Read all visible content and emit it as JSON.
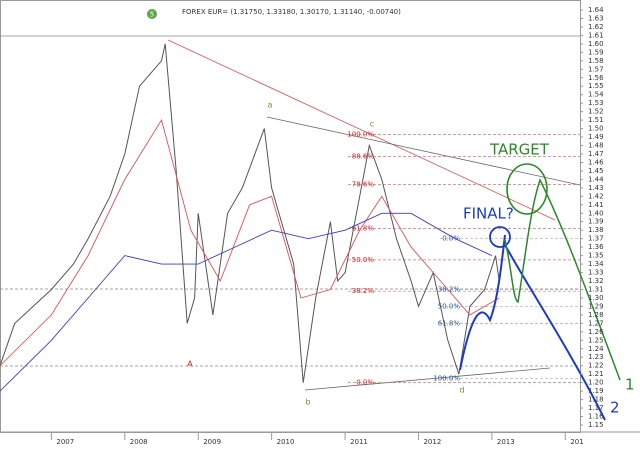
{
  "chart_data": {
    "type": "line",
    "title": "FOREX EUR= (1.31750, 1.33180, 1.30170, 1.31140, -0.00740)",
    "badge": "5",
    "xlim": [
      2006.3,
      2014.2
    ],
    "xticks": [
      2007,
      2008,
      2009,
      2010,
      2011,
      2012,
      2013,
      {
        "value": 2014,
        "label": "201"
      }
    ],
    "ylim": [
      1.15,
      1.64
    ],
    "yticks": [
      {
        "value": 1.15,
        "label": "1.15"
      },
      {
        "value": 1.16,
        "label": "1.16"
      },
      {
        "value": 1.17,
        "label": "1.17"
      },
      {
        "value": 1.18,
        "label": "1.18"
      },
      {
        "value": 1.19,
        "label": "1.19"
      },
      {
        "value": 1.2,
        "label": "1.20"
      },
      {
        "value": 1.21,
        "label": "1.21"
      },
      {
        "value": 1.22,
        "label": "1.22"
      },
      {
        "value": 1.23,
        "label": "1.23"
      },
      {
        "value": 1.24,
        "label": "1.24"
      },
      {
        "value": 1.25,
        "label": "1.25"
      },
      {
        "value": 1.26,
        "label": "1.26"
      },
      {
        "value": 1.27,
        "label": "1.27"
      },
      {
        "value": 1.28,
        "label": "1.28"
      },
      {
        "value": 1.29,
        "label": "1.29"
      },
      {
        "value": 1.3,
        "label": "1.30"
      },
      {
        "value": 1.31,
        "label": "1.31"
      },
      {
        "value": 1.32,
        "label": "1.32"
      },
      {
        "value": 1.33,
        "label": "1.33"
      },
      {
        "value": 1.34,
        "label": "1.34"
      },
      {
        "value": 1.35,
        "label": "1.35"
      },
      {
        "value": 1.36,
        "label": "1.36"
      },
      {
        "value": 1.37,
        "label": "1.37"
      },
      {
        "value": 1.38,
        "label": "1.38"
      },
      {
        "value": 1.39,
        "label": "1.39"
      },
      {
        "value": 1.4,
        "label": "1.40"
      },
      {
        "value": 1.41,
        "label": "1.41"
      },
      {
        "value": 1.42,
        "label": "1.42"
      },
      {
        "value": 1.43,
        "label": "1.43"
      },
      {
        "value": 1.44,
        "label": "1.44"
      },
      {
        "value": 1.45,
        "label": "1.45"
      },
      {
        "value": 1.46,
        "label": "1.46"
      },
      {
        "value": 1.47,
        "label": "1.47"
      },
      {
        "value": 1.48,
        "label": "1.48"
      },
      {
        "value": 1.49,
        "label": "1.49"
      },
      {
        "value": 1.5,
        "label": "1.50"
      },
      {
        "value": 1.51,
        "label": "1.51"
      },
      {
        "value": 1.52,
        "label": "1.52"
      },
      {
        "value": 1.53,
        "label": "1.53"
      },
      {
        "value": 1.54,
        "label": "1.54"
      },
      {
        "value": 1.55,
        "label": "1.55"
      },
      {
        "value": 1.56,
        "label": "1.56"
      },
      {
        "value": 1.57,
        "label": "1.57"
      },
      {
        "value": 1.58,
        "label": "1.58"
      },
      {
        "value": 1.59,
        "label": "1.59"
      },
      {
        "value": 1.6,
        "label": "1.60"
      },
      {
        "value": 1.61,
        "label": "1.61"
      },
      {
        "value": 1.62,
        "label": "1.62"
      },
      {
        "value": 1.63,
        "label": "1.63"
      },
      {
        "value": 1.64,
        "label": "1.64"
      }
    ],
    "series": [
      {
        "color": "#555555",
        "x": [
          2006.3,
          2006.5,
          2007.0,
          2007.3,
          2007.5,
          2007.8,
          2008.0,
          2008.2,
          2008.5,
          2008.55,
          2008.7,
          2008.85,
          2008.95,
          2009.0,
          2009.2,
          2009.4,
          2009.6,
          2009.9,
          2010.0,
          2010.3,
          2010.43,
          2010.6,
          2010.8,
          2010.9,
          2011.0,
          2011.2,
          2011.33,
          2011.5,
          2011.7,
          2011.9,
          2012.0,
          2012.2,
          2012.4,
          2012.55,
          2012.7,
          2012.9,
          2013.05,
          2013.1
        ],
        "values": [
          1.22,
          1.27,
          1.31,
          1.34,
          1.37,
          1.42,
          1.47,
          1.55,
          1.58,
          1.6,
          1.45,
          1.27,
          1.3,
          1.4,
          1.28,
          1.4,
          1.43,
          1.5,
          1.43,
          1.34,
          1.2,
          1.3,
          1.39,
          1.32,
          1.33,
          1.42,
          1.48,
          1.44,
          1.37,
          1.32,
          1.29,
          1.33,
          1.25,
          1.21,
          1.29,
          1.31,
          1.35,
          1.32
        ]
      },
      {
        "color": "#e05050",
        "x": [
          2006.3,
          2007.0,
          2007.5,
          2008.0,
          2008.5,
          2008.9,
          2009.3,
          2009.7,
          2010.0,
          2010.4,
          2010.8,
          2011.2,
          2011.5,
          2011.9,
          2012.3,
          2012.7,
          2013.1
        ],
        "values": [
          1.22,
          1.28,
          1.35,
          1.44,
          1.51,
          1.38,
          1.32,
          1.41,
          1.42,
          1.3,
          1.31,
          1.38,
          1.42,
          1.36,
          1.32,
          1.28,
          1.3
        ]
      },
      {
        "color": "#3a3adc",
        "x": [
          2006.3,
          2007.0,
          2007.5,
          2008.0,
          2008.5,
          2009.0,
          2009.5,
          2010.0,
          2010.5,
          2011.0,
          2011.5,
          2011.9,
          2012.5,
          2013.0
        ],
        "values": [
          1.19,
          1.25,
          1.3,
          1.35,
          1.34,
          1.34,
          1.36,
          1.38,
          1.37,
          1.38,
          1.4,
          1.4,
          1.37,
          1.35
        ]
      }
    ],
    "fib_a": [
      {
        "label": "100.0%",
        "value": 1.493
      },
      {
        "label": "88.6%",
        "value": 1.467
      },
      {
        "label": "78.6%",
        "value": 1.434
      },
      {
        "label": "61.8%",
        "value": 1.382
      },
      {
        "label": "50.0%",
        "value": 1.345
      },
      {
        "label": "38.2%",
        "value": 1.308
      },
      {
        "label": "0.0%",
        "value": 1.2
      }
    ],
    "fib_b": [
      {
        "label": "0.0%",
        "value": 1.37
      },
      {
        "label": "38.2%",
        "value": 1.31
      },
      {
        "label": "50.0%",
        "value": 1.29
      },
      {
        "label": "61.8%",
        "value": 1.27
      },
      {
        "label": "100.0%",
        "value": 1.205
      }
    ],
    "wave_labels": [
      "A",
      "a",
      "b",
      "c",
      "d"
    ],
    "notes": [
      "TARGET",
      "FINAL?",
      "1",
      "2"
    ]
  }
}
